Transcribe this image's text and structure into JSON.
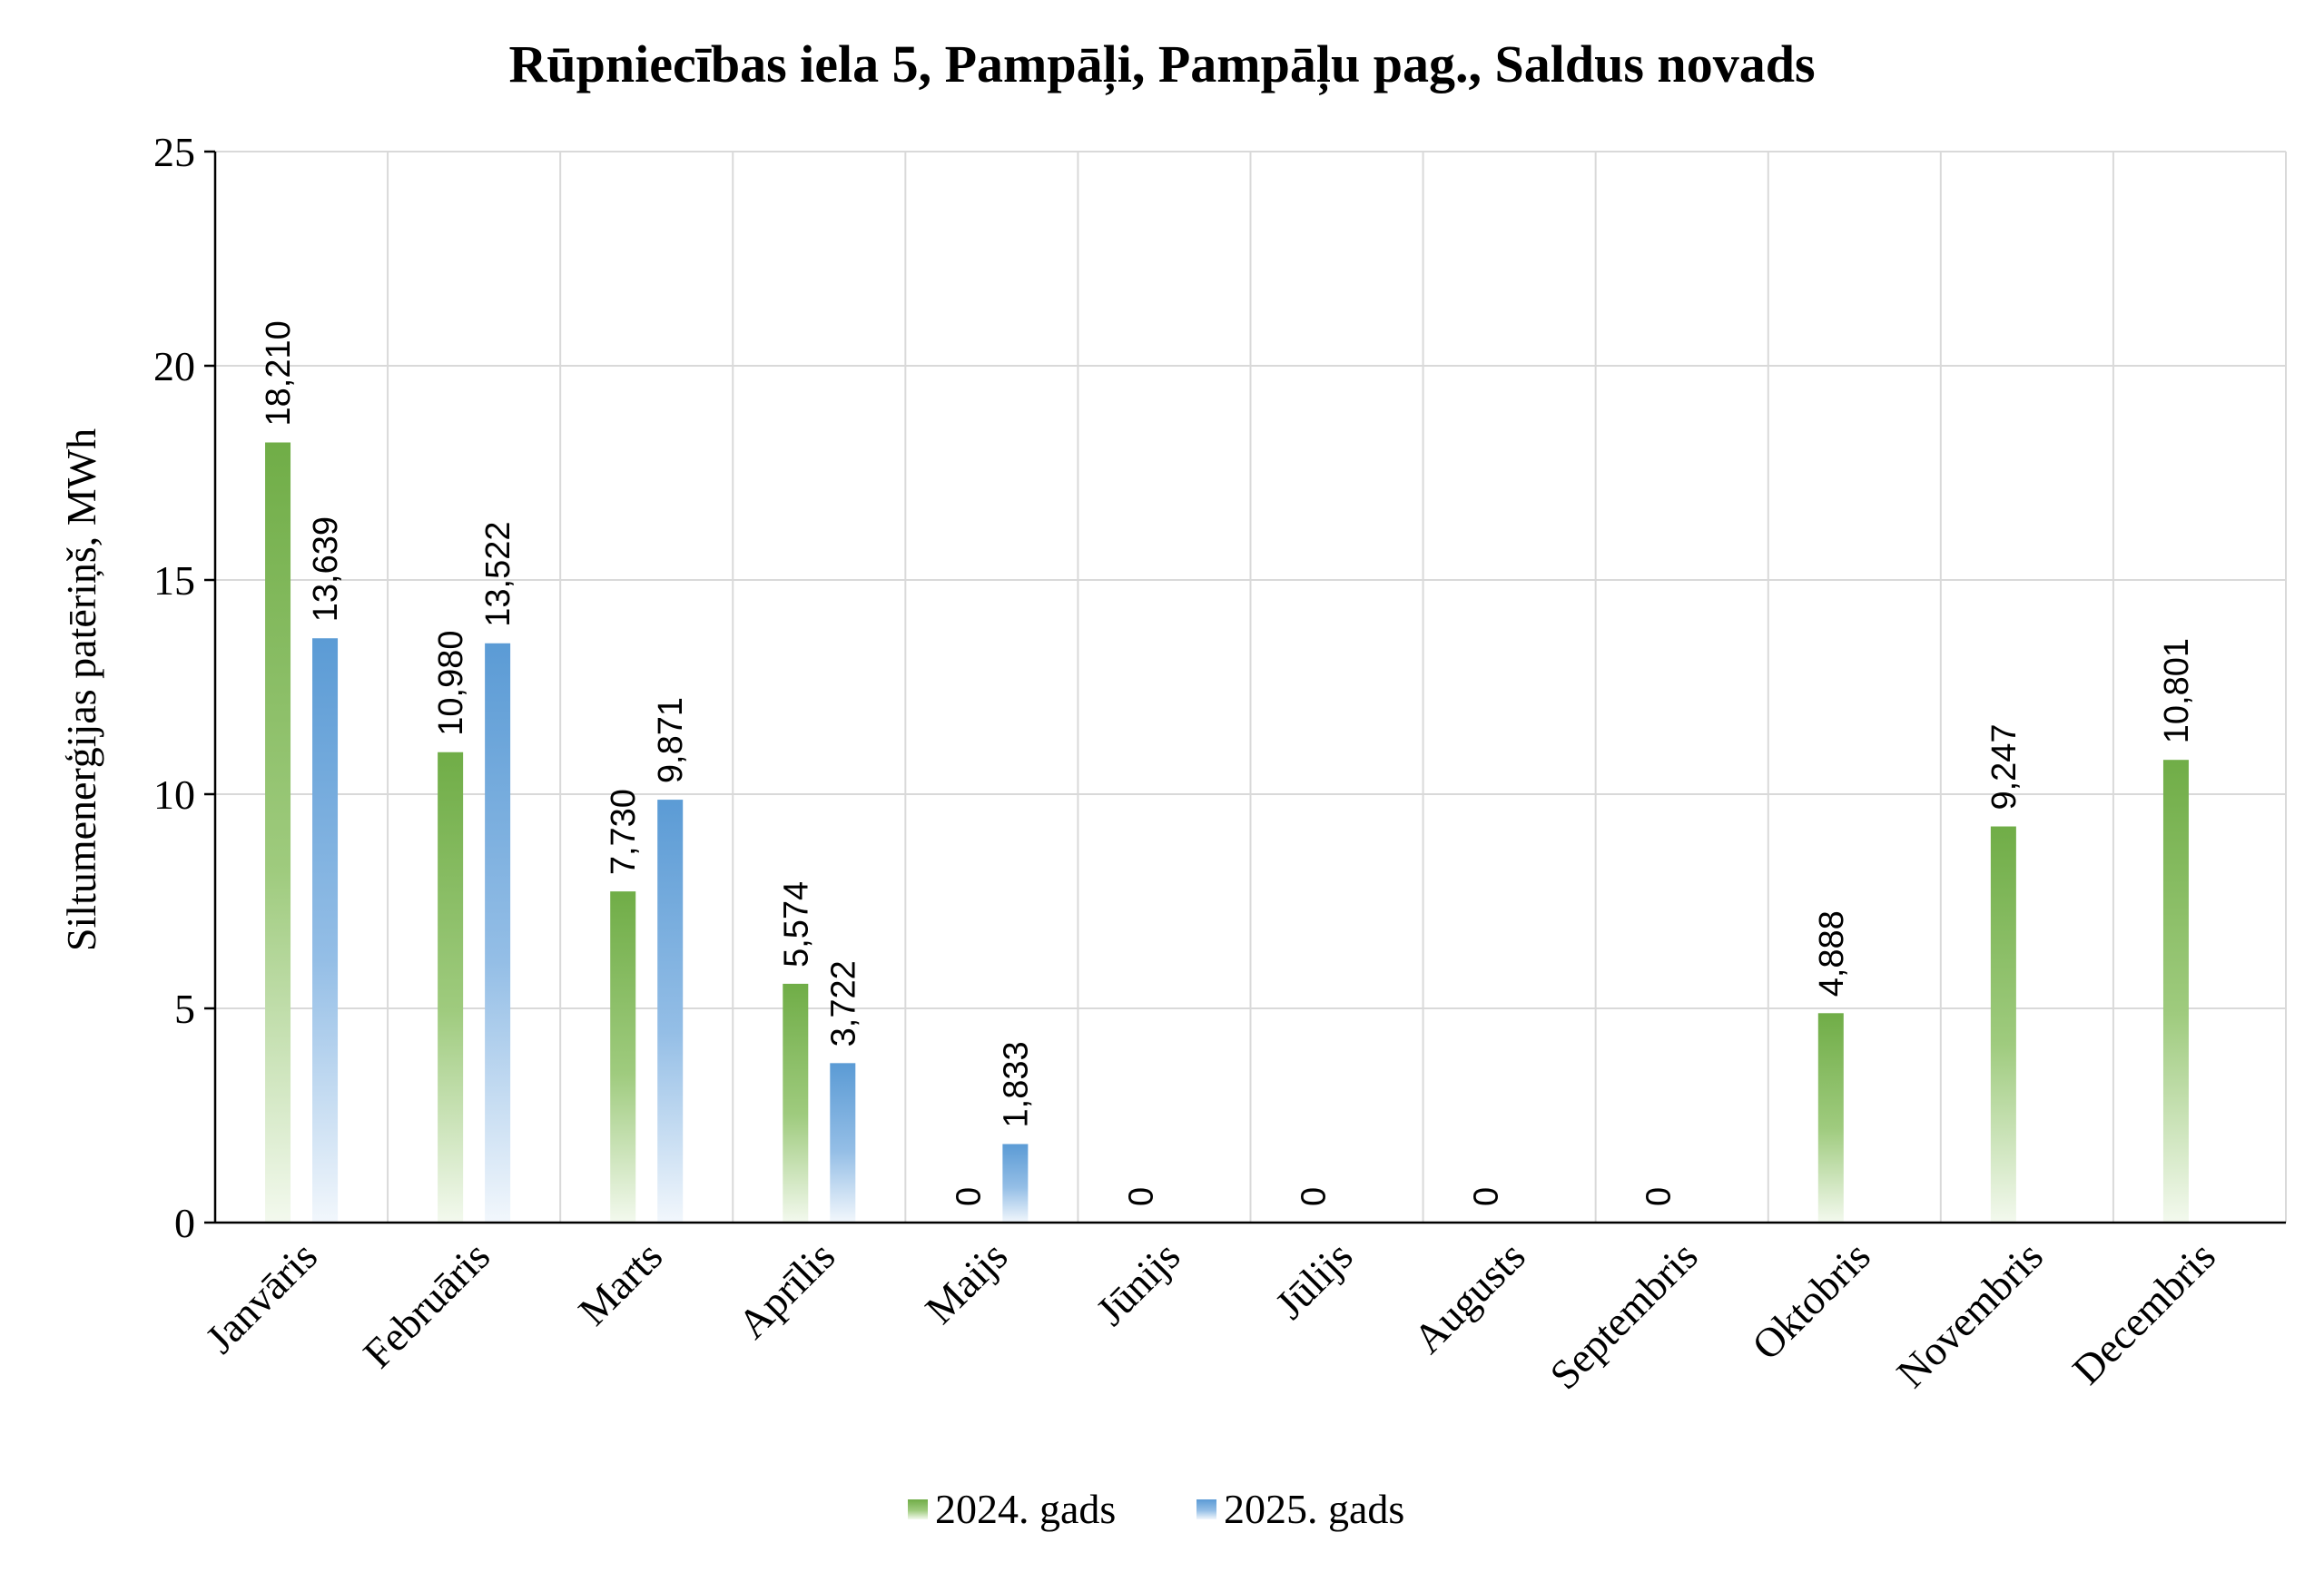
{
  "chart_data": {
    "type": "bar",
    "title": "Rūpniecības iela 5, Pampāļi, Pampāļu pag., Saldus novads",
    "xlabel": "",
    "ylabel": "Siltumenerģijas patēriņš, MWh",
    "ylim": [
      0,
      25
    ],
    "yticks": [
      0,
      5,
      10,
      15,
      20,
      25
    ],
    "grid": true,
    "legend_position": "bottom",
    "categories": [
      "Janvāris",
      "Februāris",
      "Marts",
      "Aprīlis",
      "Maijs",
      "Jūnijs",
      "Jūlijs",
      "Augusts",
      "Septembris",
      "Oktobris",
      "Novembris",
      "Decembris"
    ],
    "series": [
      {
        "name": "2024. gads",
        "color": "#70AD47",
        "values": [
          18.21,
          10.98,
          7.73,
          5.574,
          0,
          0,
          0,
          0,
          0,
          4.888,
          9.247,
          10.801
        ],
        "labels": [
          "18,210",
          "10,980",
          "7,730",
          "5,574",
          "0",
          "0",
          "0",
          "0",
          "0",
          "4,888",
          "9,247",
          "10,801"
        ]
      },
      {
        "name": "2025. gads",
        "color": "#5B9BD5",
        "values": [
          13.639,
          13.522,
          9.871,
          3.722,
          1.833,
          null,
          null,
          null,
          null,
          null,
          null,
          null
        ],
        "labels": [
          "13,639",
          "13,522",
          "9,871",
          "3,722",
          "1,833",
          "",
          "",
          "",
          "",
          "",
          "",
          ""
        ]
      }
    ]
  }
}
